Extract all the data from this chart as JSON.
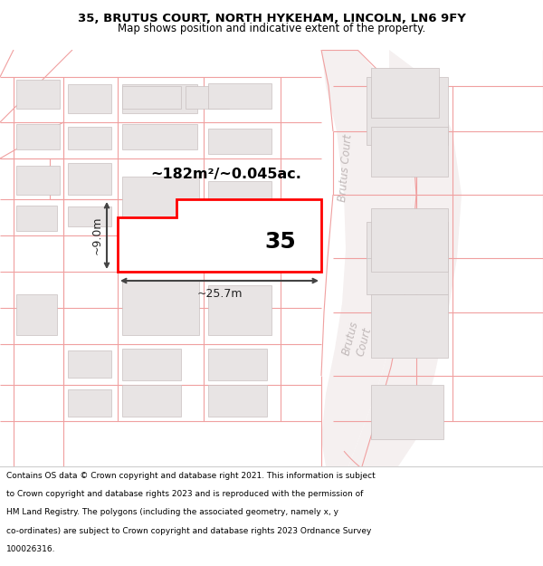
{
  "title_line1": "35, BRUTUS COURT, NORTH HYKEHAM, LINCOLN, LN6 9FY",
  "title_line2": "Map shows position and indicative extent of the property.",
  "footer_lines": [
    "Contains OS data © Crown copyright and database right 2021. This information is subject",
    "to Crown copyright and database rights 2023 and is reproduced with the permission of",
    "HM Land Registry. The polygons (including the associated geometry, namely x, y",
    "co-ordinates) are subject to Crown copyright and database rights 2023 Ordnance Survey",
    "100026316."
  ],
  "area_label": "~182m²/~0.045ac.",
  "number_label": "35",
  "width_label": "~25.7m",
  "height_label": "~9.0m",
  "map_bg": "#ffffff",
  "plot_fill": "#ffffff",
  "plot_border": "#ff0000",
  "road_line_color": "#f0a0a0",
  "block_fill": "#e8e4e4",
  "block_edge": "#c8c0c0",
  "road_bg": "#f0eded",
  "brutus_court_color": "#c0b8b8",
  "title_fontsize": 9.5,
  "subtitle_fontsize": 8.5,
  "footer_fontsize": 6.5
}
